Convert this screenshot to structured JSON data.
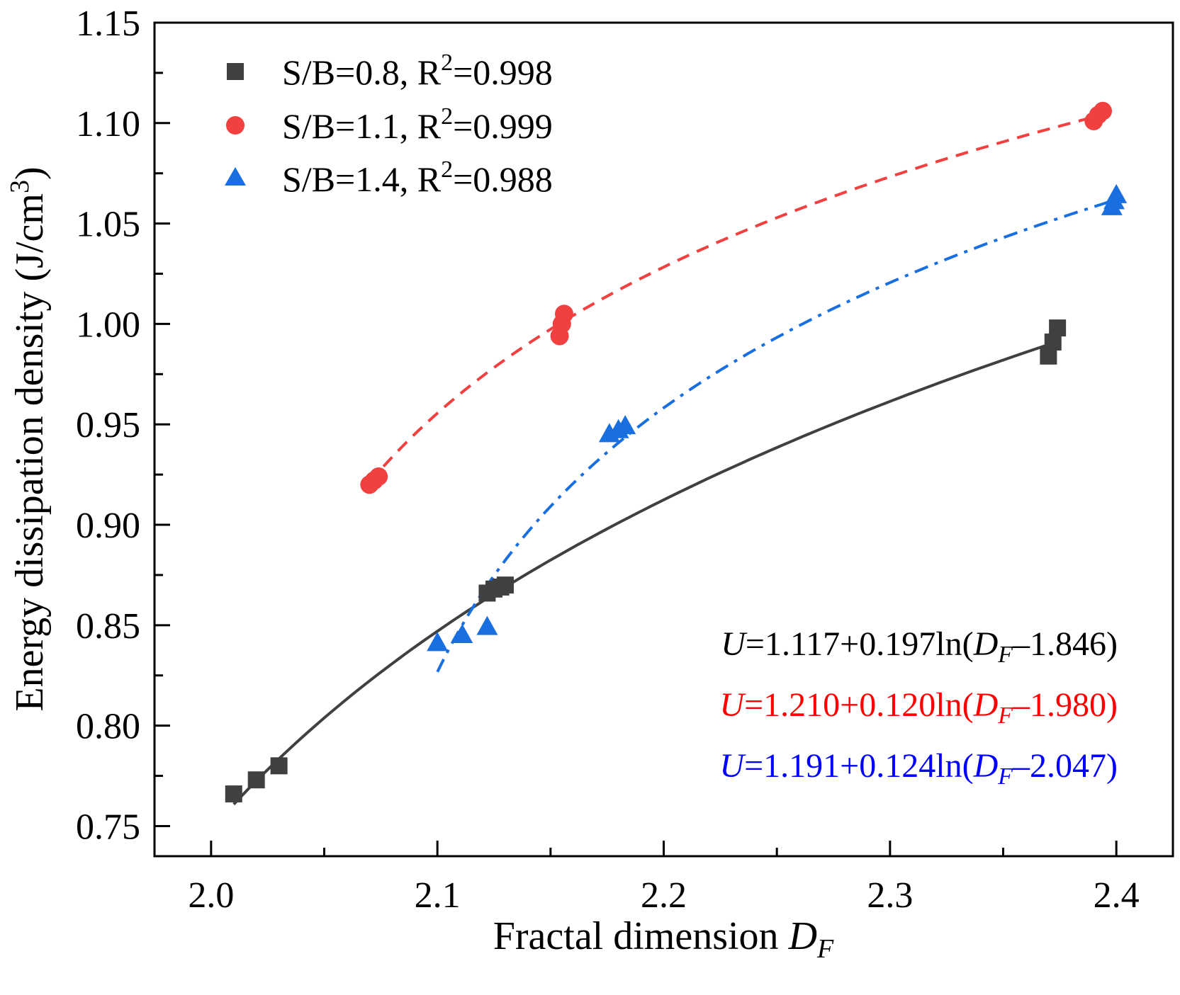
{
  "chart_data": {
    "type": "scatter",
    "xlabel": "Fractal dimension ",
    "xlabel_var": "D",
    "xlabel_sub": "F",
    "ylabel": "Energy dissipation density (J/cm",
    "ylabel_sup": "3",
    "ylabel_close": ")",
    "xlim": [
      1.975,
      2.425
    ],
    "ylim": [
      0.735,
      1.15
    ],
    "xticks": [
      2.0,
      2.1,
      2.2,
      2.3,
      2.4
    ],
    "xtick_labels": [
      "2.0",
      "2.1",
      "2.2",
      "2.3",
      "2.4"
    ],
    "yticks": [
      0.75,
      0.8,
      0.85,
      0.9,
      0.95,
      1.0,
      1.05,
      1.1,
      1.15
    ],
    "ytick_labels": [
      "0.75",
      "0.80",
      "0.85",
      "0.90",
      "0.95",
      "1.00",
      "1.05",
      "1.10",
      "1.15"
    ],
    "legend_position": "top-left",
    "series": [
      {
        "name": "S/B=0.8, R2=0.998",
        "label_main": "S/B=0.8, R",
        "label_sup": "2",
        "label_tail": "=0.998",
        "color": "#404040",
        "marker": "square",
        "line_style": "solid",
        "x": [
          2.01,
          2.02,
          2.03,
          2.122,
          2.125,
          2.128,
          2.13,
          2.37,
          2.372,
          2.374
        ],
        "y": [
          0.766,
          0.773,
          0.78,
          0.866,
          0.868,
          0.869,
          0.87,
          0.984,
          0.991,
          0.998
        ],
        "fit": {
          "a": 1.117,
          "b": 0.197,
          "c": 1.846,
          "x_range": [
            2.01,
            2.374
          ]
        },
        "equation": {
          "prefix": "U",
          "body": "=1.117+0.197ln(",
          "var": "D",
          "sub": "F",
          "tail": "–1.846)"
        }
      },
      {
        "name": "S/B=1.1, R2=0.999",
        "label_main": "S/B=1.1, R",
        "label_sup": "2",
        "label_tail": "=0.999",
        "color": "#f04040",
        "marker": "circle",
        "line_style": "dashed",
        "x": [
          2.07,
          2.072,
          2.074,
          2.154,
          2.155,
          2.156,
          2.39,
          2.392,
          2.394
        ],
        "y": [
          0.92,
          0.922,
          0.924,
          0.994,
          1.0,
          1.005,
          1.101,
          1.104,
          1.106
        ],
        "fit": {
          "a": 1.21,
          "b": 0.12,
          "c": 1.98,
          "x_range": [
            2.07,
            2.394
          ]
        },
        "equation": {
          "prefix": "U",
          "body": "=1.210+0.120ln(",
          "var": "D",
          "sub": "F",
          "tail": "–1.980)"
        }
      },
      {
        "name": "S/B=1.4, R2=0.988",
        "label_main": "S/B=1.4, R",
        "label_sup": "2",
        "label_tail": "=0.988",
        "color": "#1a6fe0",
        "marker": "triangle",
        "line_style": "dashdot",
        "x": [
          2.1,
          2.111,
          2.122,
          2.176,
          2.18,
          2.183,
          2.398,
          2.399,
          2.4
        ],
        "y": [
          0.841,
          0.845,
          0.849,
          0.945,
          0.947,
          0.949,
          1.058,
          1.061,
          1.064
        ],
        "fit": {
          "a": 1.191,
          "b": 0.124,
          "c": 2.047,
          "x_range": [
            2.1,
            2.4
          ]
        },
        "equation": {
          "prefix": "U",
          "body": "=1.191+0.124ln(",
          "var": "D",
          "sub": "F",
          "tail": "–2.047)"
        }
      }
    ]
  },
  "equation_colors": [
    "#000000",
    "#ff0000",
    "#0000ff"
  ]
}
